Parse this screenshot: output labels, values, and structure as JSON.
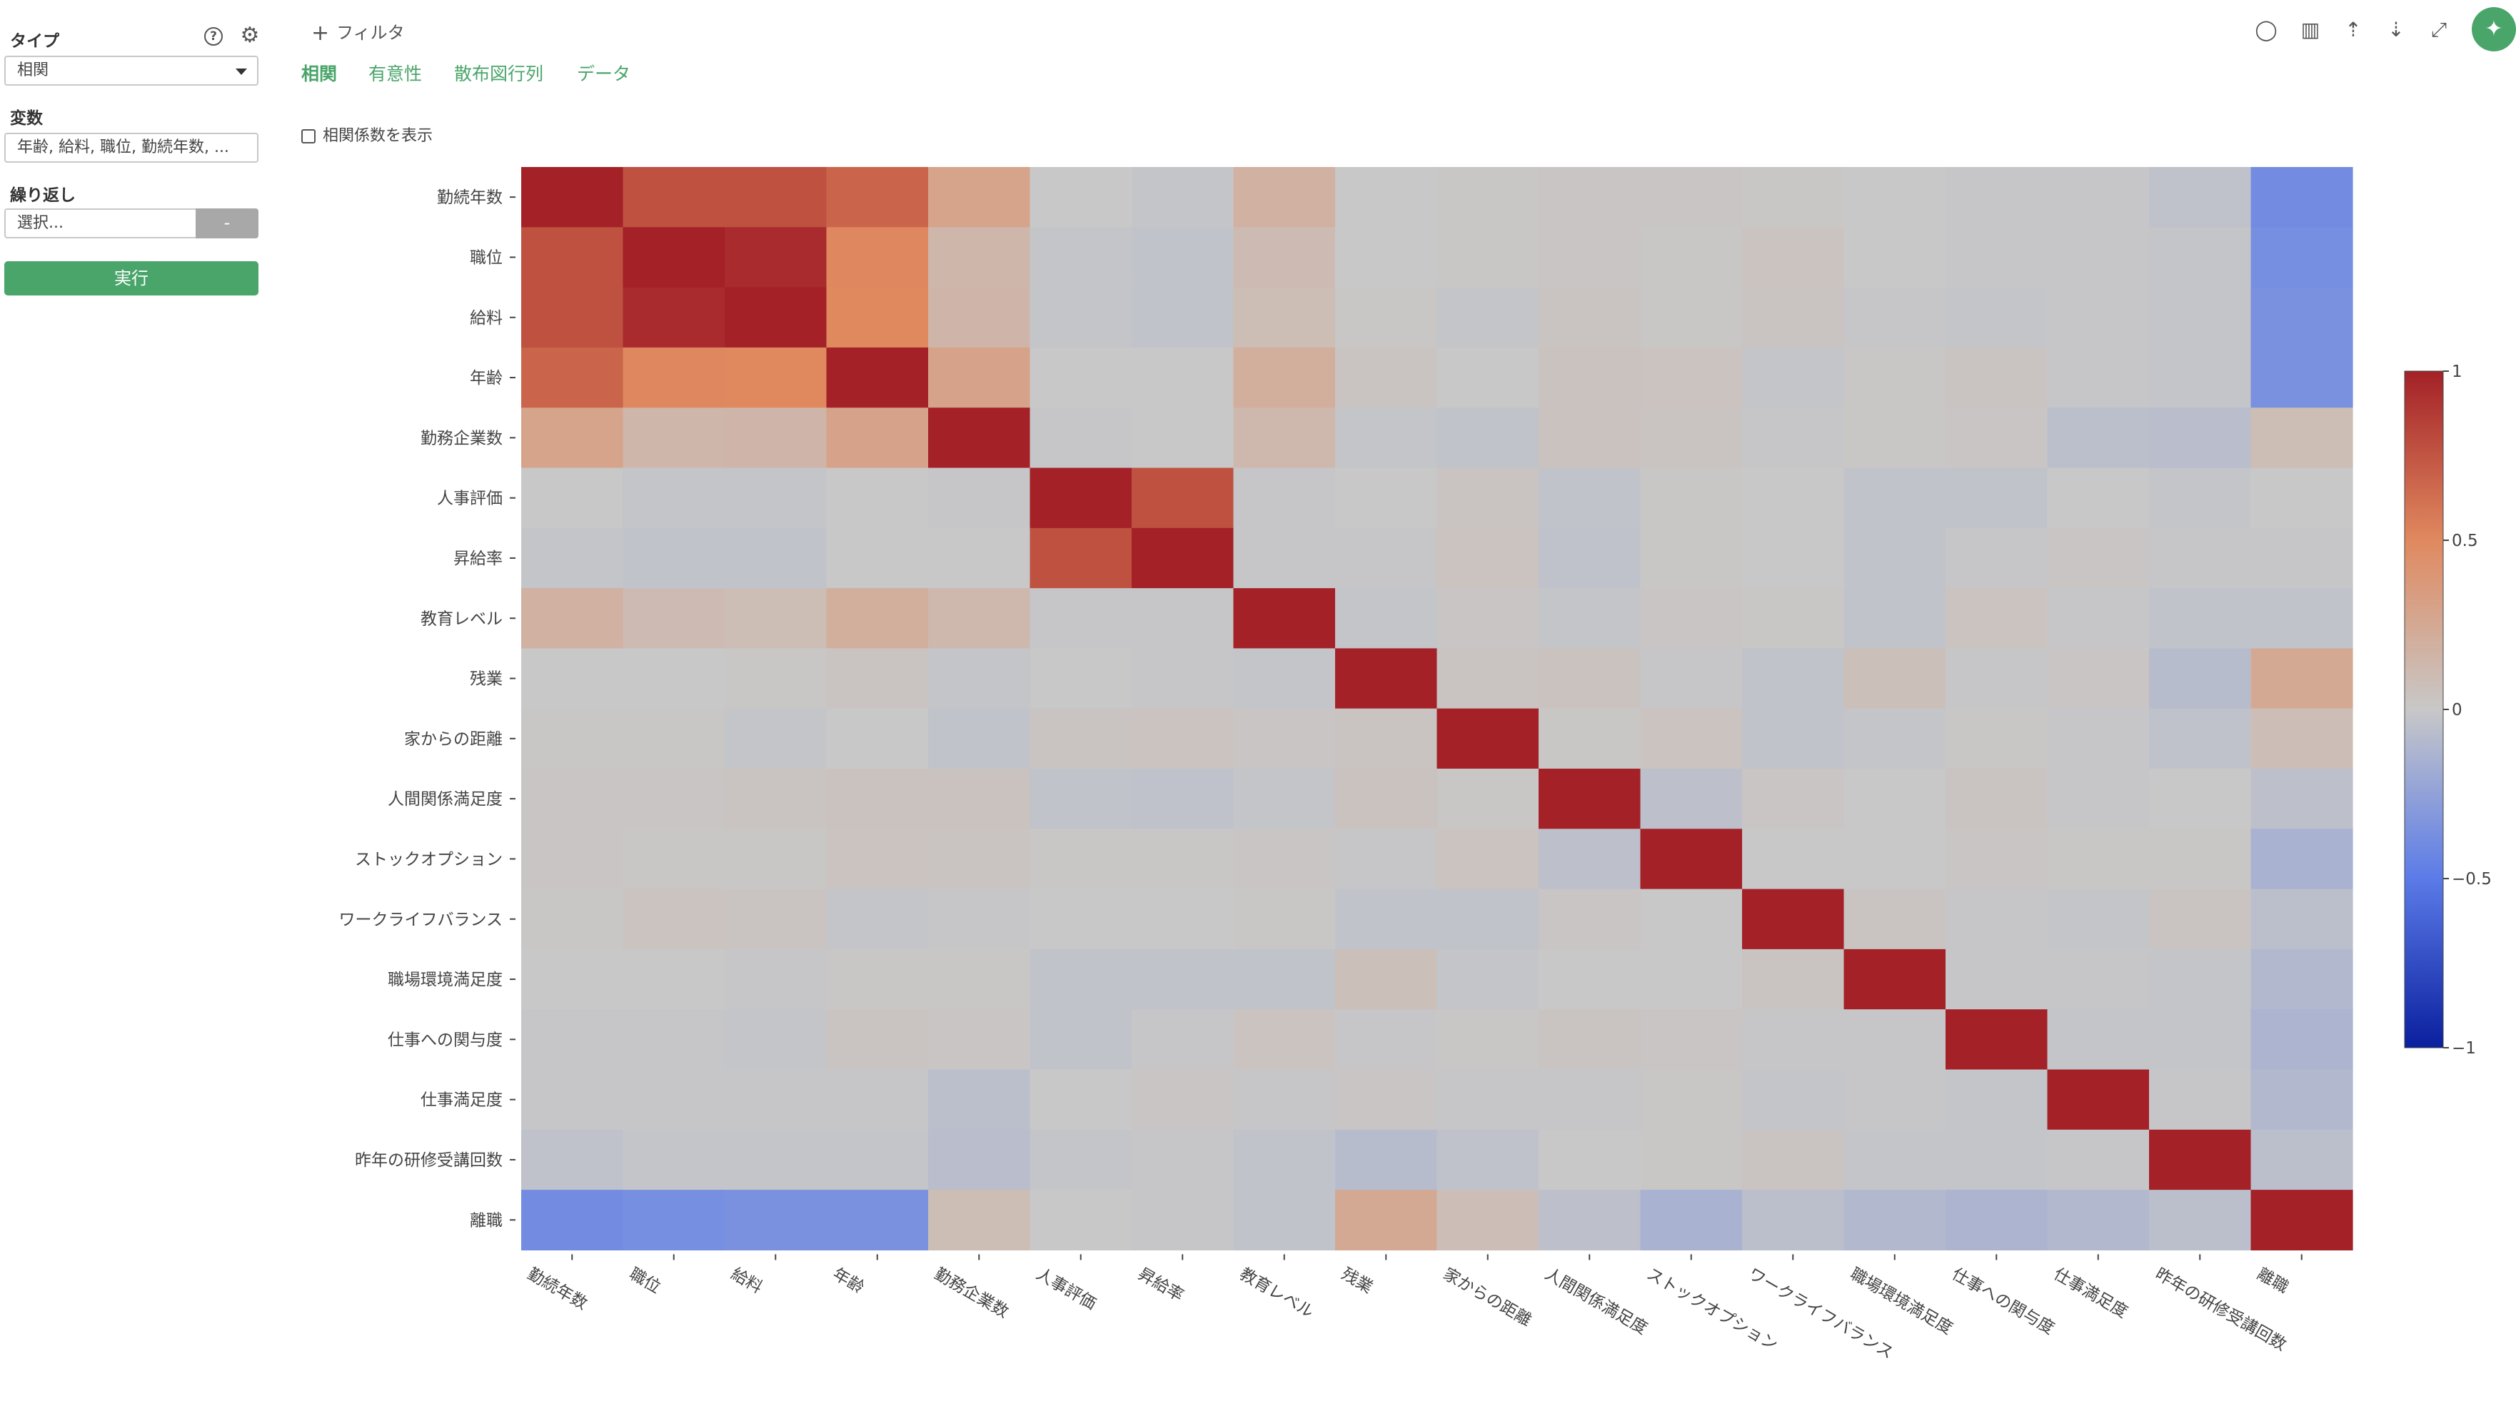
{
  "sidebar": {
    "type_label": "タイプ",
    "type_value": "相関",
    "variables_label": "変数",
    "variables_value": "年齢, 給料, 職位, 勤続年数, ...",
    "repeat_label": "繰り返し",
    "repeat_placeholder": "選択...",
    "repeat_clear_label": "-",
    "run_label": "実行",
    "help_icon": "question-circle-icon",
    "settings_icon": "gear-icon"
  },
  "header": {
    "filter_label": "フィルタ",
    "tabs": [
      {
        "label": "相関",
        "active": true
      },
      {
        "label": "有意性",
        "active": false
      },
      {
        "label": "散布図行列",
        "active": false
      },
      {
        "label": "データ",
        "active": false
      }
    ],
    "show_coef_label": "相関係数を表示",
    "show_coef_checked": false,
    "toolbar": [
      "comment-icon",
      "chart-icon",
      "upload-icon",
      "download-icon",
      "expand-icon",
      "pin-icon"
    ]
  },
  "colors": {
    "accent": "#4aa56a",
    "high": "#a32127",
    "mid": "#c8c8c8",
    "low": "#0a1f9e"
  },
  "chart_data": {
    "type": "heatmap",
    "labels": [
      "勤続年数",
      "職位",
      "給料",
      "年齢",
      "勤務企業数",
      "人事評価",
      "昇給率",
      "教育レベル",
      "残業",
      "家からの距離",
      "人間関係満足度",
      "ストックオプション",
      "ワークライフバランス",
      "職場環境満足度",
      "仕事への関与度",
      "仕事満足度",
      "昨年の研修受講回数",
      "離職"
    ],
    "matrix": [
      [
        1.0,
        0.77,
        0.77,
        0.68,
        0.29,
        0.0,
        -0.02,
        0.18,
        0.0,
        0.01,
        0.02,
        0.02,
        0.01,
        0.0,
        -0.01,
        -0.01,
        -0.04,
        -0.39
      ],
      [
        0.77,
        1.0,
        0.95,
        0.51,
        0.14,
        -0.02,
        -0.03,
        0.1,
        0.0,
        0.01,
        0.02,
        0.01,
        0.04,
        0.0,
        -0.01,
        -0.01,
        -0.02,
        -0.37
      ],
      [
        0.77,
        0.95,
        1.0,
        0.5,
        0.15,
        -0.02,
        -0.03,
        0.09,
        0.01,
        -0.02,
        0.03,
        0.01,
        0.03,
        -0.01,
        -0.02,
        -0.01,
        -0.02,
        -0.36
      ],
      [
        0.68,
        0.51,
        0.5,
        1.0,
        0.3,
        0.0,
        0.0,
        0.21,
        0.03,
        0.0,
        0.05,
        0.04,
        -0.02,
        0.01,
        0.03,
        -0.01,
        -0.02,
        -0.36
      ],
      [
        0.29,
        0.14,
        0.15,
        0.3,
        1.0,
        -0.01,
        0.0,
        0.13,
        -0.02,
        -0.03,
        0.05,
        0.03,
        -0.01,
        0.01,
        0.02,
        -0.06,
        -0.07,
        0.09
      ],
      [
        0.0,
        -0.02,
        -0.02,
        0.0,
        -0.01,
        1.0,
        0.77,
        -0.01,
        0.0,
        0.03,
        -0.03,
        0.01,
        0.0,
        -0.03,
        -0.03,
        0.0,
        -0.02,
        0.0
      ],
      [
        -0.02,
        -0.03,
        -0.03,
        0.0,
        0.0,
        0.77,
        1.0,
        -0.01,
        -0.01,
        0.04,
        -0.04,
        0.01,
        0.0,
        -0.03,
        -0.01,
        0.02,
        -0.01,
        -0.01
      ],
      [
        0.18,
        0.1,
        0.09,
        0.21,
        0.13,
        -0.01,
        -0.01,
        1.0,
        -0.02,
        0.02,
        -0.02,
        0.02,
        0.01,
        -0.03,
        0.04,
        -0.01,
        -0.03,
        -0.03
      ],
      [
        0.0,
        0.0,
        0.01,
        0.03,
        -0.02,
        0.0,
        -0.01,
        -0.02,
        1.0,
        0.03,
        0.05,
        -0.01,
        -0.03,
        0.07,
        -0.01,
        0.02,
        -0.08,
        0.25
      ],
      [
        0.01,
        0.01,
        -0.02,
        0.0,
        -0.03,
        0.03,
        0.04,
        0.02,
        0.03,
        1.0,
        0.01,
        0.04,
        -0.03,
        -0.02,
        0.01,
        -0.01,
        -0.04,
        0.08
      ],
      [
        0.02,
        0.02,
        0.03,
        0.05,
        0.05,
        -0.03,
        -0.04,
        -0.02,
        0.05,
        0.01,
        1.0,
        -0.05,
        0.02,
        0.0,
        0.03,
        -0.01,
        0.0,
        -0.05
      ],
      [
        0.02,
        0.01,
        0.01,
        0.04,
        0.03,
        0.01,
        0.01,
        0.02,
        -0.01,
        0.04,
        -0.05,
        1.0,
        0.0,
        0.0,
        0.02,
        0.01,
        0.01,
        -0.14
      ],
      [
        0.01,
        0.04,
        0.03,
        -0.02,
        -0.01,
        0.0,
        0.0,
        0.01,
        -0.03,
        -0.03,
        0.02,
        0.0,
        1.0,
        0.03,
        -0.01,
        -0.02,
        0.03,
        -0.06
      ],
      [
        0.0,
        0.0,
        -0.01,
        0.01,
        0.01,
        -0.03,
        -0.03,
        -0.03,
        0.07,
        -0.02,
        0.0,
        0.0,
        0.03,
        1.0,
        -0.01,
        -0.01,
        -0.02,
        -0.1
      ],
      [
        -0.01,
        -0.01,
        -0.02,
        0.03,
        0.02,
        -0.03,
        -0.01,
        0.04,
        -0.01,
        0.01,
        0.03,
        0.02,
        -0.01,
        -0.01,
        1.0,
        -0.02,
        -0.02,
        -0.13
      ],
      [
        -0.01,
        -0.01,
        -0.01,
        -0.01,
        -0.06,
        0.0,
        0.02,
        -0.01,
        0.02,
        -0.01,
        -0.01,
        0.01,
        -0.02,
        -0.01,
        -0.02,
        1.0,
        -0.01,
        -0.1
      ],
      [
        -0.04,
        -0.02,
        -0.02,
        -0.02,
        -0.07,
        -0.02,
        -0.01,
        -0.03,
        -0.08,
        -0.04,
        0.0,
        0.01,
        0.03,
        -0.02,
        -0.02,
        -0.01,
        1.0,
        -0.06
      ],
      [
        -0.39,
        -0.37,
        -0.36,
        -0.36,
        0.09,
        0.0,
        -0.01,
        -0.03,
        0.25,
        0.08,
        -0.05,
        -0.14,
        -0.06,
        -0.1,
        -0.13,
        -0.1,
        -0.06,
        1.0
      ]
    ],
    "zmin": -1,
    "zmax": 1,
    "colorscale": [
      "#0a1f9e",
      "#5b7be8",
      "#c8c8c8",
      "#e0895f",
      "#a32127"
    ],
    "colorbar_ticks": [
      {
        "value": 1,
        "label": "1"
      },
      {
        "value": 0.5,
        "label": "0.5"
      },
      {
        "value": 0,
        "label": "0"
      },
      {
        "value": -0.5,
        "label": "−0.5"
      },
      {
        "value": -1,
        "label": "−1"
      }
    ]
  }
}
